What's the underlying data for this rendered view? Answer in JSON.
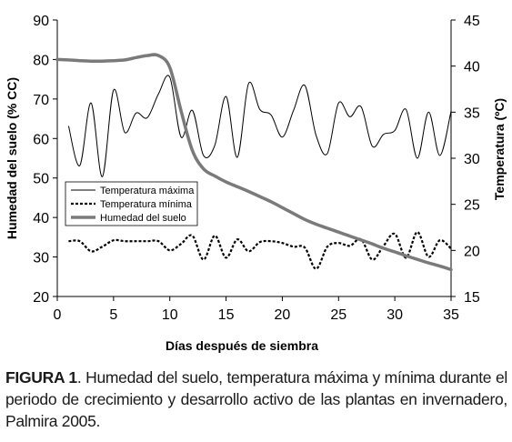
{
  "chart_data": {
    "type": "line",
    "xlabel": "Días después de siembra",
    "ylabel_left": "Humedad del suelo (% CC)",
    "ylabel_right": "Temperatura (ºC)",
    "xlim": [
      0,
      35
    ],
    "ylim_left": [
      20,
      90
    ],
    "ylim_right": [
      15,
      45
    ],
    "x_ticks": [
      "0",
      "5",
      "10",
      "15",
      "20",
      "25",
      "30",
      "35"
    ],
    "y_left_ticks": [
      "20",
      "30",
      "40",
      "50",
      "60",
      "70",
      "80",
      "90"
    ],
    "y_right_ticks": [
      "15",
      "20",
      "25",
      "30",
      "35",
      "40",
      "45"
    ],
    "legend_position": "center-left",
    "grid": false,
    "series": [
      {
        "name": "Temperatura máxima",
        "axis": "right",
        "style": "thin-solid",
        "color": "#000000",
        "x": [
          1,
          2,
          3,
          4,
          5,
          6,
          7,
          8,
          9,
          10,
          11,
          12,
          13,
          14,
          15,
          16,
          17,
          18,
          19,
          20,
          21,
          22,
          23,
          24,
          25,
          26,
          27,
          28,
          29,
          30,
          31,
          32,
          33,
          34,
          35
        ],
        "y": [
          33.5,
          29.2,
          36.0,
          28.0,
          37.4,
          32.8,
          34.9,
          34.4,
          37.0,
          38.8,
          32.3,
          35.2,
          30.3,
          31.4,
          36.7,
          30.1,
          38.1,
          35.3,
          34.7,
          32.3,
          35.2,
          37.9,
          32.5,
          30.5,
          36.0,
          34.5,
          35.6,
          31.3,
          32.6,
          33.0,
          35.3,
          30.0,
          35.0,
          30.3,
          35.1
        ]
      },
      {
        "name": "Temperatura mínima",
        "axis": "right",
        "style": "thick-dashed",
        "color": "#000000",
        "x": [
          1,
          2,
          3,
          4,
          5,
          6,
          7,
          8,
          9,
          10,
          11,
          12,
          13,
          14,
          15,
          16,
          17,
          18,
          19,
          20,
          21,
          22,
          23,
          24,
          25,
          26,
          27,
          28,
          29,
          30,
          31,
          32,
          33,
          34,
          35
        ],
        "y": [
          21.0,
          21.0,
          19.9,
          20.4,
          21.1,
          21.0,
          21.0,
          21.0,
          21.0,
          20.0,
          20.7,
          21.6,
          19.0,
          21.6,
          19.2,
          21.2,
          19.9,
          20.9,
          21.0,
          20.8,
          20.4,
          20.3,
          18.0,
          20.4,
          20.8,
          20.5,
          21.2,
          19.0,
          20.5,
          21.8,
          19.2,
          22.0,
          19.3,
          21.1,
          20.2
        ]
      },
      {
        "name": "Humedad del suelo",
        "axis": "left",
        "style": "thick-gray",
        "color": "#7a7a7a",
        "x": [
          0,
          1,
          2,
          3,
          4,
          5,
          6,
          7,
          8,
          9,
          10,
          11,
          12,
          13,
          14,
          15,
          16,
          17,
          18,
          19,
          20,
          21,
          22,
          23,
          24,
          25,
          26,
          27,
          28,
          29,
          30,
          31,
          32,
          33,
          34,
          35
        ],
        "y": [
          80.0,
          79.9,
          79.7,
          79.6,
          79.6,
          79.7,
          79.9,
          80.5,
          81.0,
          81.0,
          78.0,
          67.0,
          57.0,
          52.3,
          50.5,
          49.0,
          47.8,
          46.6,
          45.3,
          44.0,
          42.5,
          41.0,
          39.5,
          38.3,
          37.3,
          36.3,
          35.3,
          34.3,
          33.3,
          32.2,
          31.3,
          30.3,
          29.4,
          28.5,
          27.7,
          26.8
        ]
      }
    ]
  },
  "caption": {
    "label": "FIGURA 1",
    "text": ". Humedad del suelo, temperatura máxima y mínima durante el periodo de crecimiento y desarrollo activo de las plantas en invernadero, Palmira 2005."
  }
}
